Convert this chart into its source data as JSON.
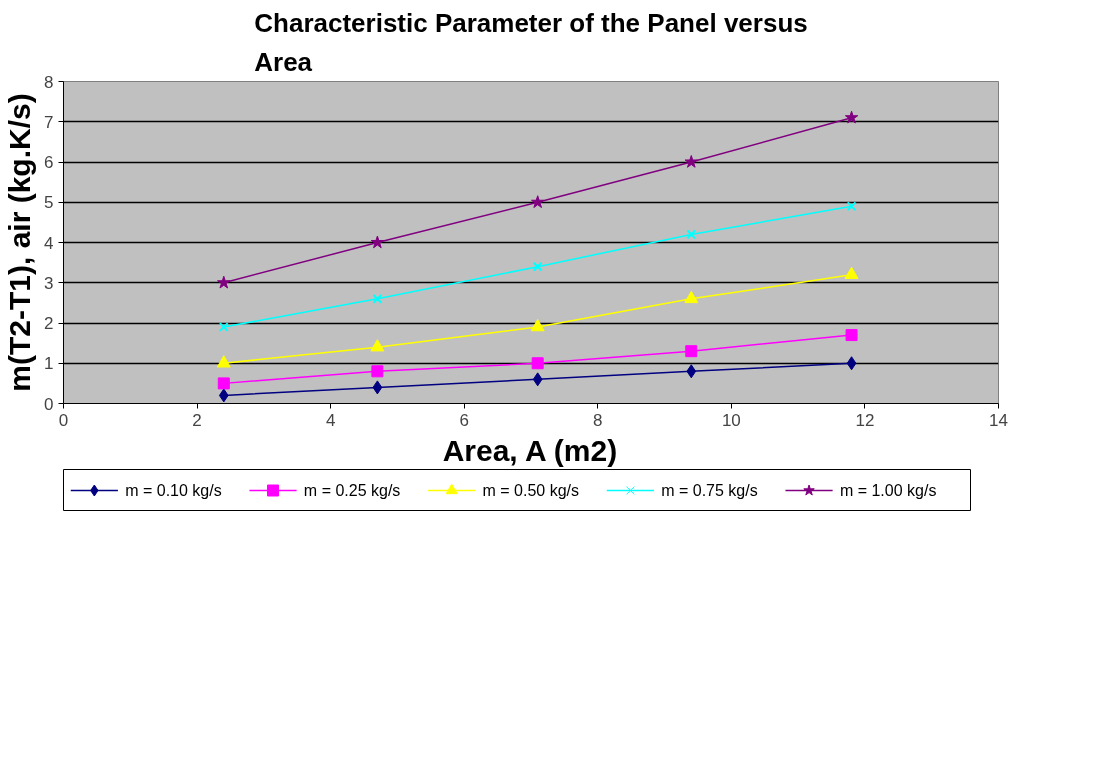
{
  "chart_data": {
    "type": "line",
    "title": "Characteristic Parameter of the Panel versus Area",
    "xlabel": "Area, A (m2)",
    "ylabel": "m(T2-T1), air (kg.K/s)",
    "x": [
      2.4,
      4.7,
      7.1,
      9.4,
      11.8
    ],
    "series": [
      {
        "name": "m = 0.10 kg/s",
        "color": "#000080",
        "marker": "diamond",
        "values": [
          0.2,
          0.4,
          0.6,
          0.8,
          1.0
        ]
      },
      {
        "name": "m = 0.25 kg/s",
        "color": "#ff00ff",
        "marker": "square",
        "values": [
          0.5,
          0.8,
          1.0,
          1.3,
          1.7
        ]
      },
      {
        "name": "m = 0.50 kg/s",
        "color": "#ffff00",
        "marker": "triangle",
        "values": [
          1.0,
          1.4,
          1.9,
          2.6,
          3.2
        ]
      },
      {
        "name": "m = 0.75 kg/s",
        "color": "#00ffff",
        "marker": "cross",
        "values": [
          1.9,
          2.6,
          3.4,
          4.2,
          4.9
        ]
      },
      {
        "name": "m = 1.00 kg/s",
        "color": "#800080",
        "marker": "star",
        "values": [
          3.0,
          4.0,
          5.0,
          6.0,
          7.1
        ]
      }
    ],
    "xlim": [
      0,
      14
    ],
    "xticks": [
      0,
      2,
      4,
      6,
      8,
      10,
      12,
      14
    ],
    "ylim": [
      0,
      8
    ],
    "yticks": [
      0,
      1,
      2,
      3,
      4,
      5,
      6,
      7,
      8
    ],
    "grid": "y",
    "legend": "bottom",
    "line_style": "solid"
  }
}
